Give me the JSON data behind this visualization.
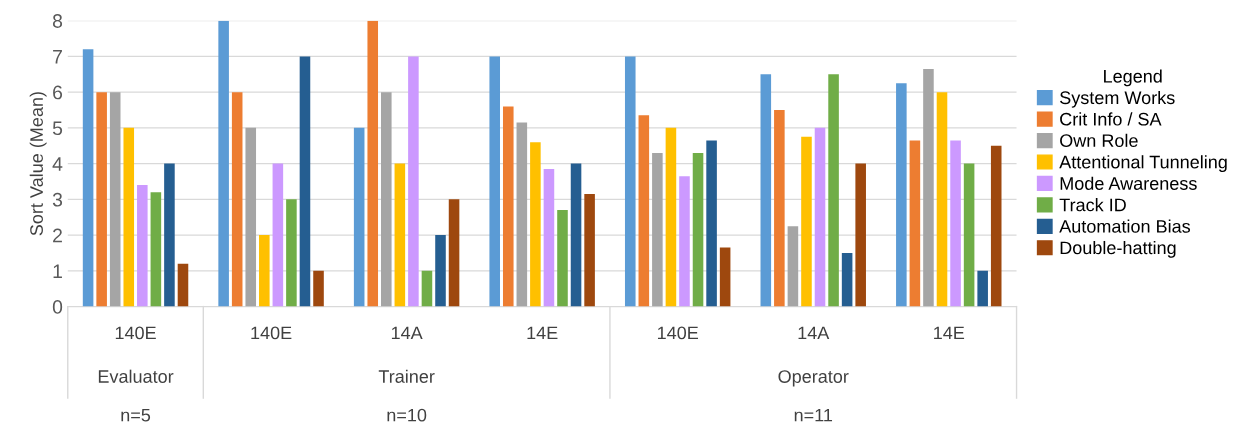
{
  "chart_data": {
    "type": "bar",
    "ylabel": "Sort Value (Mean)",
    "legend_title": "Legend",
    "categories": [
      "140E",
      "140E",
      "14A",
      "14E",
      "140E",
      "14A",
      "14E"
    ],
    "series": [
      {
        "name": "System Works",
        "color": "#5b9bd5",
        "values": [
          7.2,
          8,
          5,
          7,
          7,
          6.5,
          6.25
        ]
      },
      {
        "name": "Crit Info / SA",
        "color": "#ed7d31",
        "values": [
          6,
          6,
          8,
          5.6,
          5.35,
          5.5,
          4.65
        ]
      },
      {
        "name": "Own Role",
        "color": "#a5a5a5",
        "values": [
          6,
          5,
          6,
          5.15,
          4.3,
          2.25,
          6.65
        ]
      },
      {
        "name": "Attentional Tunneling",
        "color": "#ffc000",
        "values": [
          5,
          2,
          4,
          4.6,
          5,
          4.75,
          6
        ]
      },
      {
        "name": "Mode Awareness",
        "color": "#cc99ff",
        "values": [
          3.4,
          4,
          7,
          3.85,
          3.65,
          5,
          4.65
        ]
      },
      {
        "name": "Track ID",
        "color": "#70ad47",
        "values": [
          3.2,
          3,
          1,
          2.7,
          4.3,
          6.5,
          4
        ]
      },
      {
        "name": "Automation Bias",
        "color": "#255e91",
        "values": [
          4,
          7,
          2,
          4,
          4.65,
          1.5,
          1
        ]
      },
      {
        "name": "Double-hatting",
        "color": "#9e480e",
        "values": [
          1.2,
          1,
          3,
          3.15,
          1.65,
          4,
          4.5
        ]
      }
    ],
    "ylim": [
      0,
      8
    ],
    "yticks": [
      0,
      1,
      2,
      3,
      4,
      5,
      6,
      7,
      8
    ],
    "grid": "y",
    "legend": "right",
    "annotations": [
      "Evaluator",
      "Trainer",
      "Operator",
      "n=5",
      "n=10",
      "n=11"
    ]
  }
}
